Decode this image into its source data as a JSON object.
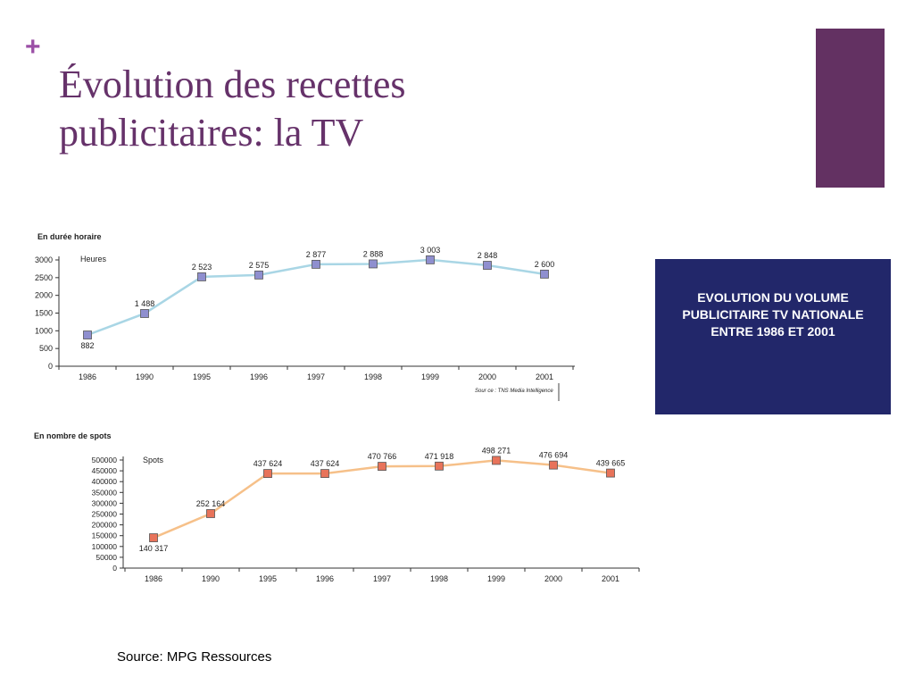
{
  "slide": {
    "plus": "+",
    "title_line1": "Évolution des recettes",
    "title_line2": "publicitaires: la TV",
    "info_box": "EVOLUTION DU VOLUME PUBLICITAIRE TV NATIONALE ENTRE 1986 ET 2001",
    "source": "Source: MPG Ressources"
  },
  "colors": {
    "title": "#66326a",
    "plus": "#9b4fa6",
    "accent_bar": "#633162",
    "info_box_bg": "#22276a",
    "chart1_line": "#a9d6e5",
    "chart1_marker": "#8f8fcf",
    "chart2_line": "#f6c089",
    "chart2_marker": "#e8735a"
  },
  "chart_data": [
    {
      "type": "line",
      "title": "En durée horaire",
      "ylabel": "Heures",
      "note": "Sour ce : TNS Media Intelligence",
      "categories": [
        "1986",
        "1990",
        "1995",
        "1996",
        "1997",
        "1998",
        "1999",
        "2000",
        "2001"
      ],
      "yticks": [
        "3000",
        "2500",
        "2000",
        "1500",
        "1000",
        "500",
        "0"
      ],
      "ylim": [
        0,
        3000
      ],
      "series": [
        {
          "values": [
            882,
            1488,
            2523,
            2575,
            2877,
            2888,
            3003,
            2848,
            2600
          ],
          "labels": [
            "882",
            "1 488",
            "2 523",
            "2 575",
            "2 877",
            "2 888",
            "3 003",
            "2 848",
            "2 600"
          ]
        }
      ]
    },
    {
      "type": "line",
      "title": "En nombre de spots",
      "ylabel": "Spots",
      "categories": [
        "1986",
        "1990",
        "1995",
        "1996",
        "1997",
        "1998",
        "1999",
        "2000",
        "2001"
      ],
      "yticks": [
        "500000",
        "450000",
        "400000",
        "350000",
        "300000",
        "250000",
        "200000",
        "150000",
        "100000",
        "50000",
        "0"
      ],
      "ylim": [
        0,
        500000
      ],
      "series": [
        {
          "values": [
            140317,
            252164,
            437624,
            437624,
            470766,
            471918,
            498271,
            476694,
            439665
          ],
          "labels": [
            "140 317",
            "252 164",
            "437 624",
            "437 624",
            "470 766",
            "471 918",
            "498 271",
            "476 694",
            "439 665"
          ]
        }
      ]
    }
  ]
}
